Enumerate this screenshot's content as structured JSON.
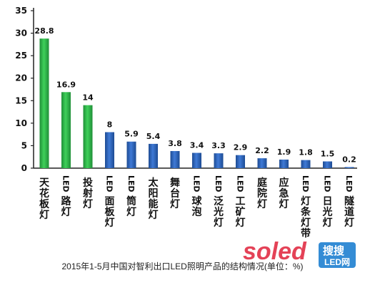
{
  "chart_data": {
    "type": "bar",
    "categories": [
      "天花板灯",
      "LED路灯",
      "投射灯",
      "LED面板灯",
      "LED筒灯",
      "太阳能灯",
      "舞台灯",
      "LED球泡",
      "LED泛光灯",
      "LED工矿灯",
      "庭院灯",
      "应急灯",
      "LED灯条灯带",
      "LED日光灯",
      "LED隧道灯"
    ],
    "values": [
      28.8,
      16.9,
      14,
      8,
      5.9,
      5.4,
      3.8,
      3.4,
      3.3,
      2.9,
      2.2,
      1.9,
      1.8,
      1.5,
      0.2
    ],
    "value_labels": [
      "28.8",
      "16.9",
      "14",
      "8",
      "5.9",
      "5.4",
      "3.8",
      "3.4",
      "3.3",
      "2.9",
      "2.2",
      "1.9",
      "1.8",
      "1.5",
      "0.2"
    ],
    "bar_colors": [
      "#2db84a",
      "#2db84a",
      "#2db84a",
      "#2c62b8",
      "#2c62b8",
      "#2c62b8",
      "#2c62b8",
      "#2c62b8",
      "#2c62b8",
      "#2c62b8",
      "#2c62b8",
      "#2c62b8",
      "#2c62b8",
      "#2c62b8",
      "#2c62b8"
    ],
    "yticks": [
      "0",
      "5",
      "10",
      "15",
      "20",
      "25",
      "30",
      "35"
    ],
    "ylim": [
      0,
      35
    ],
    "grid": false,
    "title": "",
    "xlabel": "",
    "ylabel": ""
  },
  "caption": "2015年1-5月中国对智利出口LED照明产品的结构情况(单位：%)",
  "watermark": {
    "brand": "soled",
    "badge_line1": "搜搜",
    "badge_line2": "LED网",
    "brand_color": "#e0223a",
    "badge_color": "#1e7fd0"
  }
}
